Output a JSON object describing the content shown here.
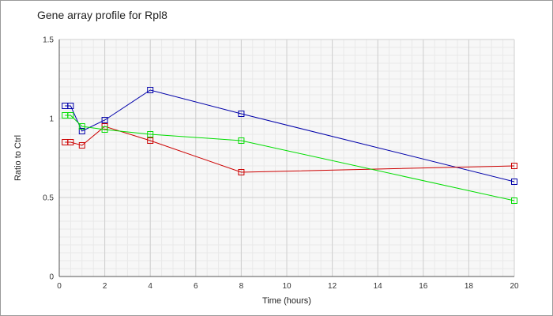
{
  "chart_data": {
    "type": "line",
    "title": "Gene array profile for Rpl8",
    "xlabel": "Time (hours)",
    "ylabel": "Ratio to Ctrl",
    "xlim": [
      0,
      20
    ],
    "ylim": [
      0,
      1.5
    ],
    "xticks": [
      "0",
      "2",
      "4",
      "6",
      "8",
      "10",
      "12",
      "14",
      "16",
      "18",
      "20"
    ],
    "yticks": [
      "0",
      "0.5",
      "1",
      "1.5"
    ],
    "grid": true,
    "marker": "square",
    "series": [
      {
        "color": "#0000aa",
        "x": [
          0.25,
          0.5,
          1,
          2,
          4,
          8,
          20
        ],
        "y": [
          1.08,
          1.08,
          0.92,
          0.99,
          1.18,
          1.03,
          0.6
        ]
      },
      {
        "color": "#cc0000",
        "x": [
          0.25,
          0.5,
          1,
          2,
          4,
          8,
          20
        ],
        "y": [
          0.85,
          0.85,
          0.83,
          0.95,
          0.86,
          0.66,
          0.7
        ]
      },
      {
        "color": "#00dd00",
        "x": [
          0.25,
          0.5,
          1,
          2,
          4,
          8,
          20
        ],
        "y": [
          1.02,
          1.02,
          0.95,
          0.93,
          0.9,
          0.86,
          0.48
        ]
      }
    ]
  }
}
